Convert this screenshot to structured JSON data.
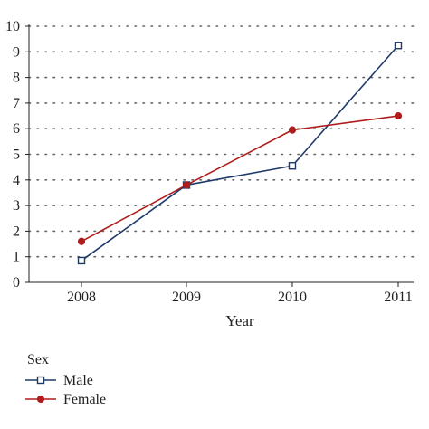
{
  "chart_data": {
    "type": "line",
    "title": "",
    "xlabel": "Year",
    "ylabel": "",
    "x": [
      "2008",
      "2009",
      "2010",
      "2011"
    ],
    "ylim": [
      0,
      10
    ],
    "yticks": [
      "0",
      "1",
      "2",
      "3",
      "4",
      "5",
      "6",
      "7",
      "8",
      "9",
      "10"
    ],
    "grid": "dotted-horizontal",
    "legend": {
      "title": "Sex",
      "placement": "bottom-left"
    },
    "series": [
      {
        "name": "Male",
        "values": [
          0.85,
          3.8,
          4.55,
          9.25
        ],
        "color": "#1f3a68",
        "marker": "open-square"
      },
      {
        "name": "Female",
        "values": [
          1.6,
          3.8,
          5.95,
          6.5
        ],
        "color": "#b01c1c",
        "marker": "filled-circle"
      }
    ]
  }
}
